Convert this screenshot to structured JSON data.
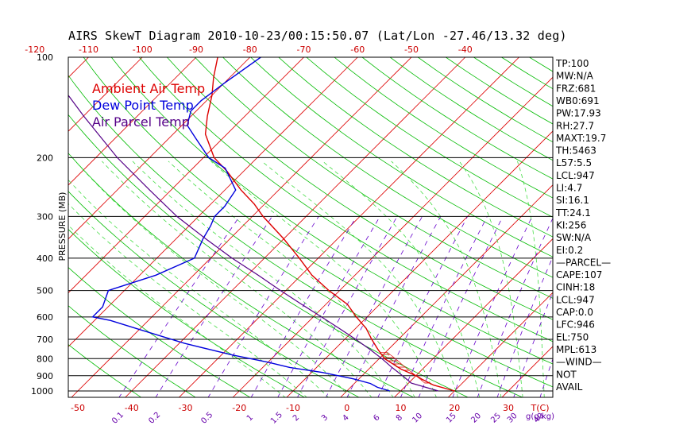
{
  "title": "AIRS SkewT Diagram 2010-10-23/00:15:50.07 (Lat/Lon -27.46/13.32 deg)",
  "colors": {
    "ambient": "#dd0000",
    "dewpoint": "#0000dd",
    "parcel": "#550088",
    "isotherm": "#dd0000",
    "dry_adiabat": "#00bb00",
    "moist_adiabat": "#44dd44",
    "mixing_ratio": "#6600cc",
    "isobar": "#000000"
  },
  "chart_data": {
    "type": "line",
    "ylabel": "PRESSURE (MB)",
    "xlabel": "T(C)",
    "y_scale": "log",
    "ylim": [
      1050,
      100
    ],
    "pressure_ticks": [
      100,
      200,
      300,
      400,
      500,
      600,
      700,
      800,
      900,
      1000
    ],
    "top_temp_ticks": [
      -120,
      -110,
      -100,
      -90,
      -80,
      -70,
      -60,
      -50,
      -40
    ],
    "bottom_temp_ticks": [
      -50,
      -40,
      -30,
      -20,
      -10,
      0,
      10,
      20,
      30
    ],
    "mixing_ratio_labels": [
      "0.1",
      "0.2",
      "0.5",
      "1",
      "1.5",
      "2",
      "3",
      "4",
      "6",
      "8",
      "10",
      "15",
      "20",
      "25",
      "30",
      "40"
    ],
    "mixing_ratio_unit": "g(g/kg)",
    "legend": [
      "Ambient Air Temp",
      "Dew Point Temp",
      "Air Parcel Temp"
    ],
    "series": [
      {
        "name": "Ambient Air Temp",
        "pressure": [
          1000,
          960,
          925,
          900,
          860,
          800,
          750,
          700,
          650,
          600,
          550,
          500,
          450,
          400,
          350,
          300,
          275,
          250,
          220,
          200,
          170,
          150,
          130,
          115,
          100
        ],
        "temperature": [
          20,
          15,
          12,
          10,
          6,
          1,
          -2,
          -5,
          -8,
          -12,
          -16,
          -22,
          -28,
          -33.5,
          -40,
          -48,
          -52,
          -57,
          -63,
          -68,
          -74,
          -77,
          -80,
          -83,
          -86
        ]
      },
      {
        "name": "Dew Point Temp",
        "pressure": [
          1000,
          975,
          950,
          920,
          880,
          850,
          820,
          780,
          720,
          660,
          615,
          600,
          560,
          500,
          450,
          400,
          350,
          320,
          300,
          280,
          250,
          215,
          200,
          175,
          160,
          145,
          135,
          120,
          100
        ],
        "temperature": [
          8,
          5,
          3,
          -1,
          -8,
          -15,
          -20,
          -28,
          -39,
          -49,
          -57,
          -61,
          -61,
          -63,
          -57,
          -53,
          -55,
          -56,
          -57,
          -57,
          -58,
          -64,
          -69,
          -75,
          -79,
          -81,
          -81,
          -80,
          -78
        ]
      },
      {
        "name": "Air Parcel Temp",
        "pressure": [
          1000,
          947,
          900,
          850,
          800,
          750,
          700,
          650,
          600,
          550,
          500,
          450,
          400,
          350,
          300,
          250,
          200,
          150,
          100
        ],
        "temperature": [
          17,
          10.5,
          7.5,
          4,
          0.5,
          -3.5,
          -8,
          -13,
          -18.5,
          -24.5,
          -31,
          -38,
          -46,
          -54.5,
          -64,
          -74,
          -86,
          -100,
          -119
        ]
      }
    ]
  },
  "stats": [
    "TP:100",
    "MW:N/A",
    "FRZ:681",
    "WB0:691",
    "PW:17.93",
    "RH:27.7",
    "MAXT:19.7",
    "TH:5463",
    "L57:5.5",
    "LCL:947",
    "LI:4.7",
    "SI:16.1",
    "TT:24.1",
    "KI:256",
    "SW:N/A",
    "EI:0.2",
    "—PARCEL—",
    "CAPE:107",
    "CINH:18",
    "LCL:947",
    "CAP:0.0",
    "LFC:946",
    "EL:750",
    "MPL:613",
    "—WIND—",
    "NOT",
    "AVAIL"
  ]
}
